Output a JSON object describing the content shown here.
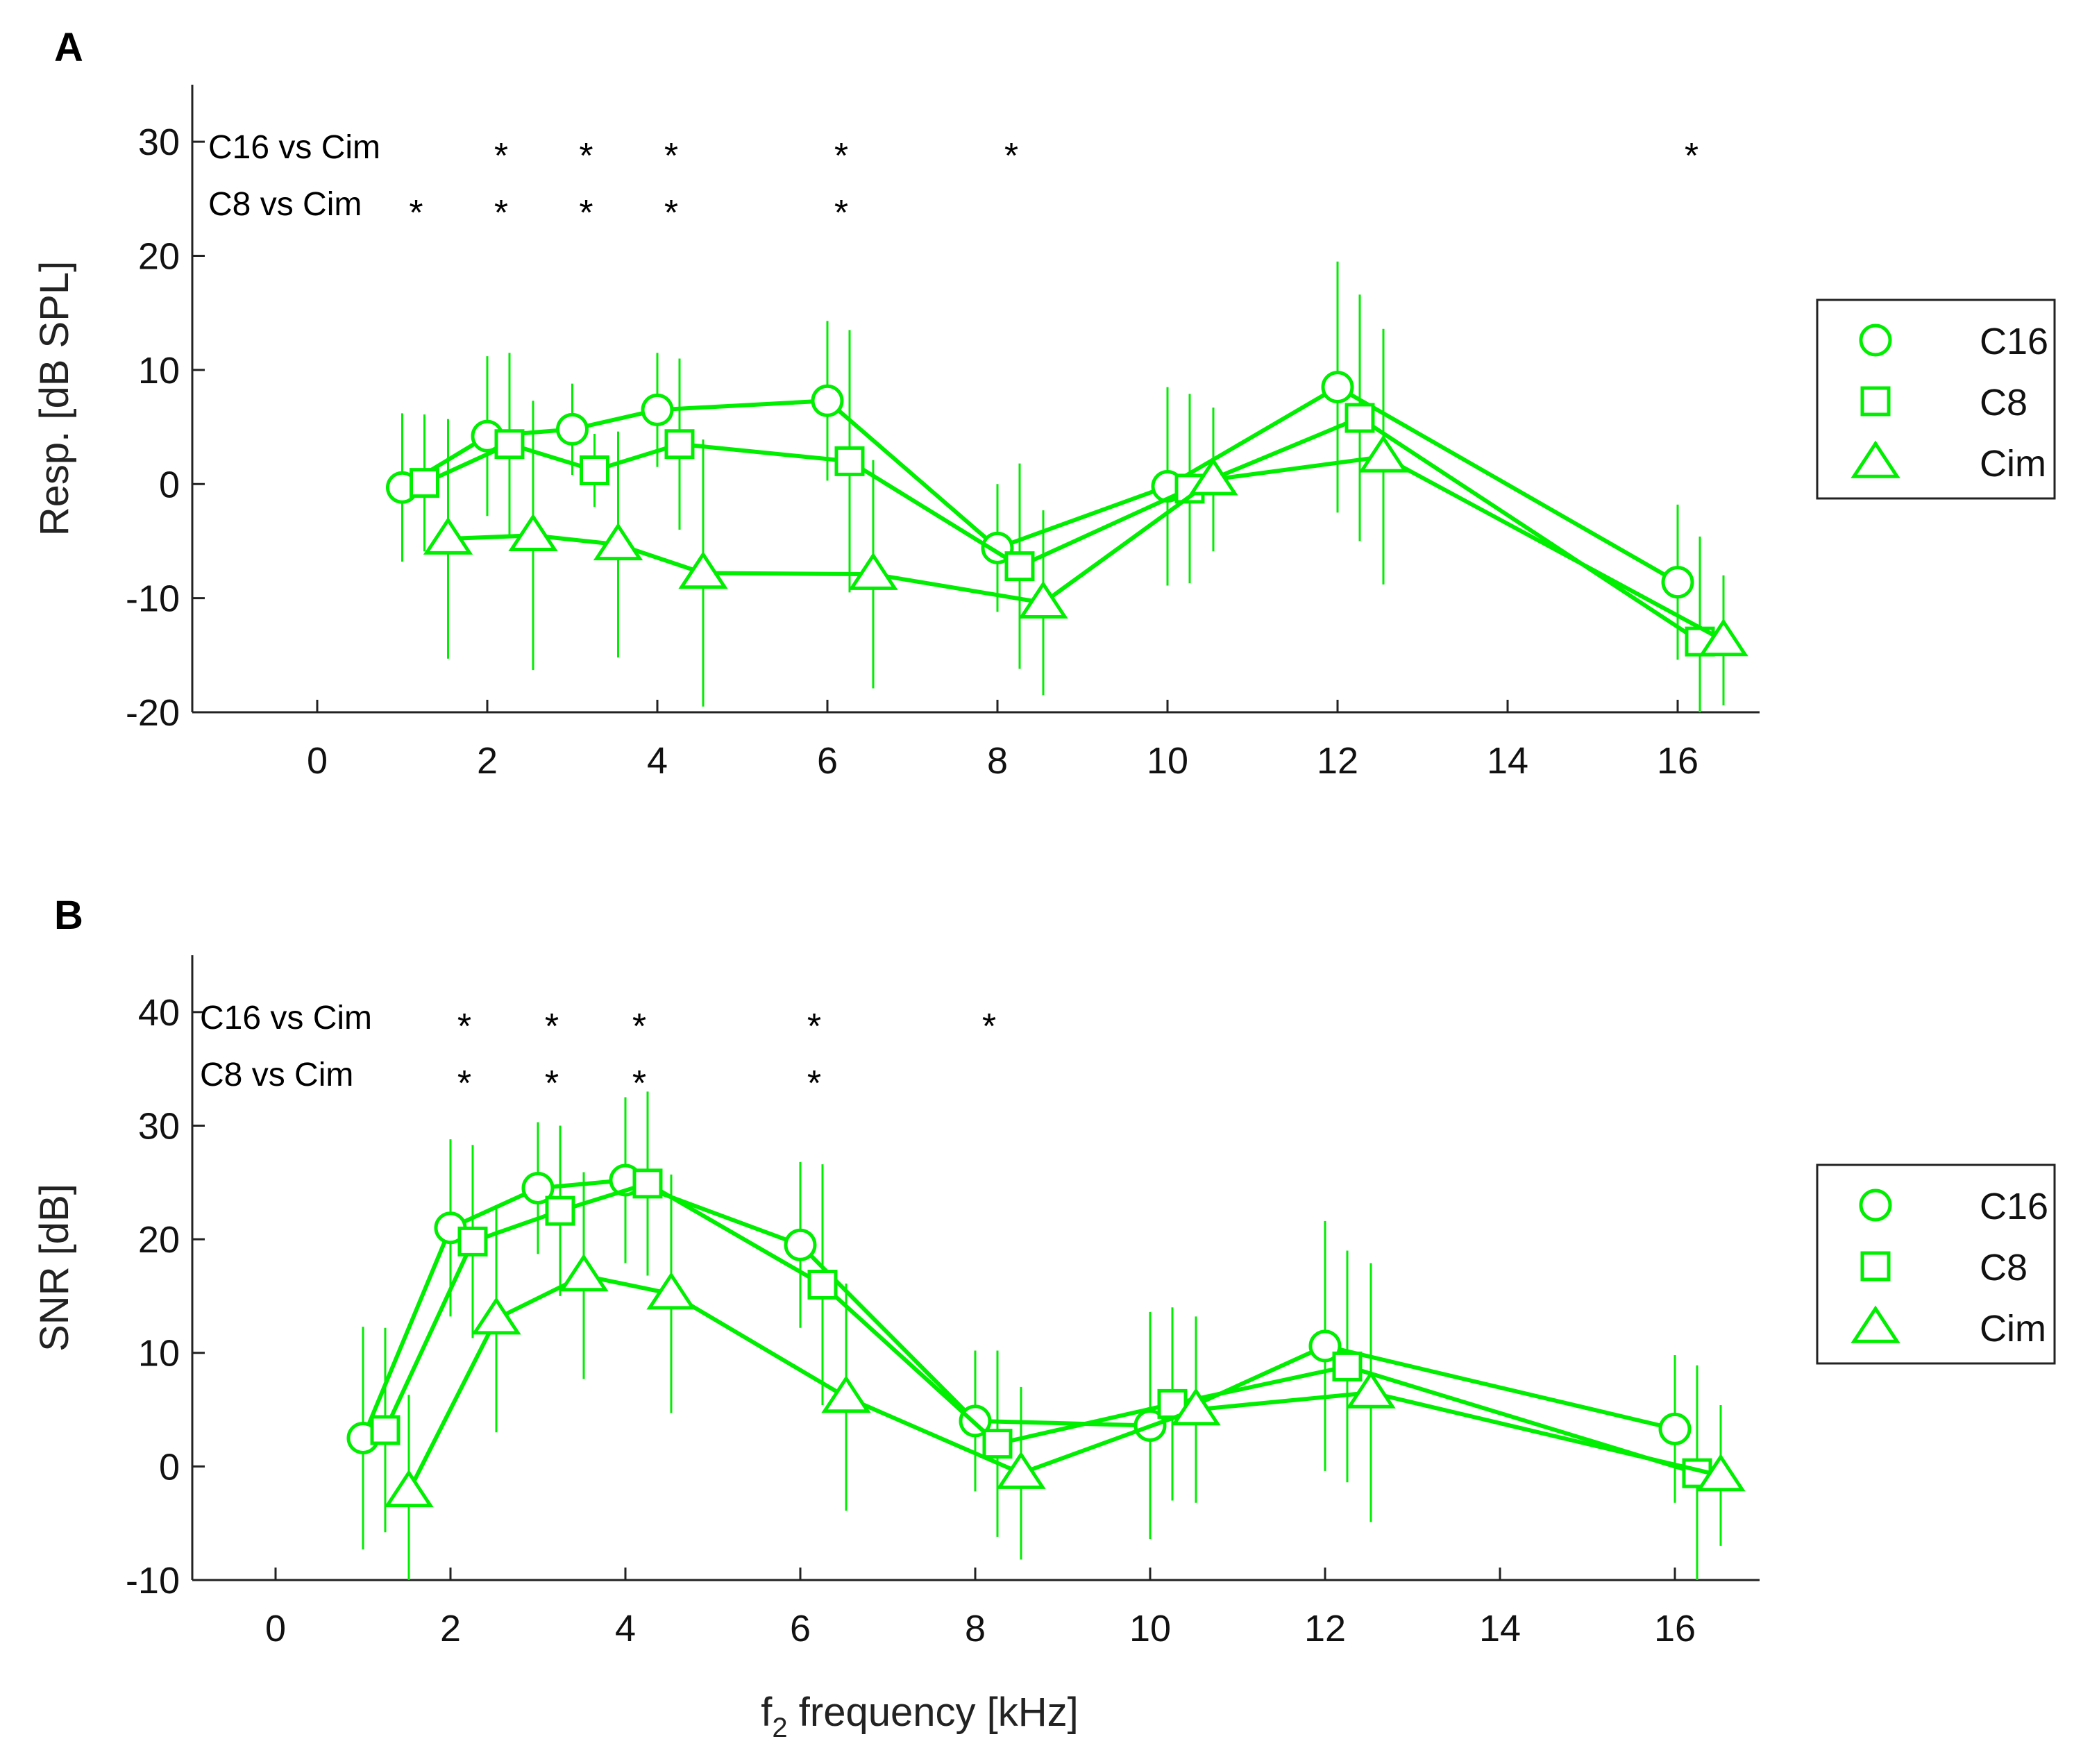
{
  "chart_data": [
    {
      "type": "line",
      "panel_label": "A",
      "ylabel": "Resp. [dB SPL]",
      "xlabel": "",
      "ylim": [
        -20,
        35
      ],
      "yticks": [
        -20,
        -10,
        0,
        10,
        20,
        30
      ],
      "ytick_labels": [
        "-20",
        "-10",
        "0",
        "10",
        "20",
        "30"
      ],
      "categories": [
        "0",
        "2",
        "4",
        "6",
        "8",
        "10",
        "12",
        "14",
        "16"
      ],
      "series": [
        {
          "name": "C16",
          "marker": "circle",
          "color": "#00ee00",
          "points": [
            {
              "x": 1,
              "y": -0.3,
              "err": 6.5
            },
            {
              "x": 2,
              "y": 4.2,
              "err": 7
            },
            {
              "x": 3,
              "y": 4.8,
              "err": 4
            },
            {
              "x": 4,
              "y": 6.5,
              "err": 5
            },
            {
              "x": 6,
              "y": 7.3,
              "err": 7
            },
            {
              "x": 8,
              "y": -5.6,
              "err": 5.6
            },
            {
              "x": 10,
              "y": -0.2,
              "err": 8.7
            },
            {
              "x": 12,
              "y": 8.5,
              "err": 11
            },
            {
              "x": 16,
              "y": -8.6,
              "err": 6.8
            }
          ]
        },
        {
          "name": "C8",
          "marker": "square",
          "color": "#00ee00",
          "points": [
            {
              "x": 1,
              "y": 0.1,
              "err": 6
            },
            {
              "x": 2,
              "y": 3.5,
              "err": 8
            },
            {
              "x": 3,
              "y": 1.2,
              "err": 3.2
            },
            {
              "x": 4,
              "y": 3.5,
              "err": 7.5
            },
            {
              "x": 6,
              "y": 2.0,
              "err": 11.5
            },
            {
              "x": 8,
              "y": -7.2,
              "err": 9
            },
            {
              "x": 10,
              "y": -0.4,
              "err": 8.3
            },
            {
              "x": 12,
              "y": 5.8,
              "err": 10.8
            },
            {
              "x": 16,
              "y": -13.8,
              "err": 9.2
            }
          ]
        },
        {
          "name": "Cim",
          "marker": "triangle",
          "color": "#00ee00",
          "points": [
            {
              "x": 1,
              "y": -4.8,
              "err": 10.5
            },
            {
              "x": 2,
              "y": -4.5,
              "err": 11.8
            },
            {
              "x": 3,
              "y": -5.3,
              "err": 9.9
            },
            {
              "x": 4,
              "y": -7.8,
              "err": 11.7
            },
            {
              "x": 6,
              "y": -7.9,
              "err": 10
            },
            {
              "x": 8,
              "y": -10.4,
              "err": 8.1
            },
            {
              "x": 10,
              "y": 0.4,
              "err": 6.3
            },
            {
              "x": 12,
              "y": 2.4,
              "err": 11.2
            },
            {
              "x": 16,
              "y": -13.7,
              "err": 5.7
            }
          ]
        }
      ],
      "significance": [
        {
          "label": "C16 vs Cim",
          "at": [
            "2",
            "3",
            "4",
            "6",
            "8",
            "16"
          ]
        },
        {
          "label": "C8 vs Cim",
          "at": [
            "1",
            "2",
            "3",
            "4",
            "6"
          ]
        }
      ],
      "star_symbol": "*",
      "legend": [
        "C16",
        "C8",
        "Cim"
      ],
      "legend_position": "right"
    },
    {
      "type": "line",
      "panel_label": "B",
      "ylabel": "SNR [dB]",
      "xlabel": "f2 frequency [kHz]",
      "xlabel_main": "f",
      "xlabel_sub": "2",
      "xlabel_rest": " frequency [kHz]",
      "ylim": [
        -10,
        45
      ],
      "yticks": [
        -10,
        0,
        10,
        20,
        30,
        40
      ],
      "ytick_labels": [
        "-10",
        "0",
        "10",
        "20",
        "30",
        "40"
      ],
      "categories": [
        "0",
        "2",
        "4",
        "6",
        "8",
        "10",
        "12",
        "14",
        "16"
      ],
      "series": [
        {
          "name": "C16",
          "marker": "circle",
          "color": "#00ee00",
          "points": [
            {
              "x": 1,
              "y": 2.5,
              "err": 9.8
            },
            {
              "x": 2,
              "y": 21,
              "err": 7.8
            },
            {
              "x": 3,
              "y": 24.5,
              "err": 5.8
            },
            {
              "x": 4,
              "y": 25.2,
              "err": 7.3
            },
            {
              "x": 6,
              "y": 19.5,
              "err": 7.3
            },
            {
              "x": 8,
              "y": 4.0,
              "err": 6.2
            },
            {
              "x": 10,
              "y": 3.6,
              "err": 10
            },
            {
              "x": 12,
              "y": 10.6,
              "err": 11
            },
            {
              "x": 16,
              "y": 3.3,
              "err": 6.5
            }
          ]
        },
        {
          "name": "C8",
          "marker": "square",
          "color": "#00ee00",
          "points": [
            {
              "x": 1,
              "y": 3.2,
              "err": 9
            },
            {
              "x": 2,
              "y": 19.8,
              "err": 8.5
            },
            {
              "x": 3,
              "y": 22.5,
              "err": 7.5
            },
            {
              "x": 4,
              "y": 24.9,
              "err": 8.1
            },
            {
              "x": 6,
              "y": 16,
              "err": 10.6
            },
            {
              "x": 8,
              "y": 2.0,
              "err": 8.2
            },
            {
              "x": 10,
              "y": 5.5,
              "err": 8.5
            },
            {
              "x": 12,
              "y": 8.8,
              "err": 10.2
            },
            {
              "x": 16,
              "y": -0.6,
              "err": 9.5
            }
          ]
        },
        {
          "name": "Cim",
          "marker": "triangle",
          "color": "#00ee00",
          "points": [
            {
              "x": 1,
              "y": -2.2,
              "err": 8.5
            },
            {
              "x": 2,
              "y": 13,
              "err": 10
            },
            {
              "x": 3,
              "y": 16.8,
              "err": 9.1
            },
            {
              "x": 4,
              "y": 15.2,
              "err": 10.5
            },
            {
              "x": 6,
              "y": 6.1,
              "err": 10
            },
            {
              "x": 8,
              "y": -0.6,
              "err": 7.6
            },
            {
              "x": 10,
              "y": 5.0,
              "err": 8.2
            },
            {
              "x": 12,
              "y": 6.5,
              "err": 11.4
            },
            {
              "x": 16,
              "y": -0.8,
              "err": 6.2
            }
          ]
        }
      ],
      "significance": [
        {
          "label": "C16 vs Cim",
          "at": [
            "2",
            "3",
            "4",
            "6",
            "8"
          ]
        },
        {
          "label": "C8 vs Cim",
          "at": [
            "2",
            "3",
            "4",
            "6"
          ]
        }
      ],
      "star_symbol": "*",
      "legend": [
        "C16",
        "C8",
        "Cim"
      ],
      "legend_position": "right"
    }
  ]
}
